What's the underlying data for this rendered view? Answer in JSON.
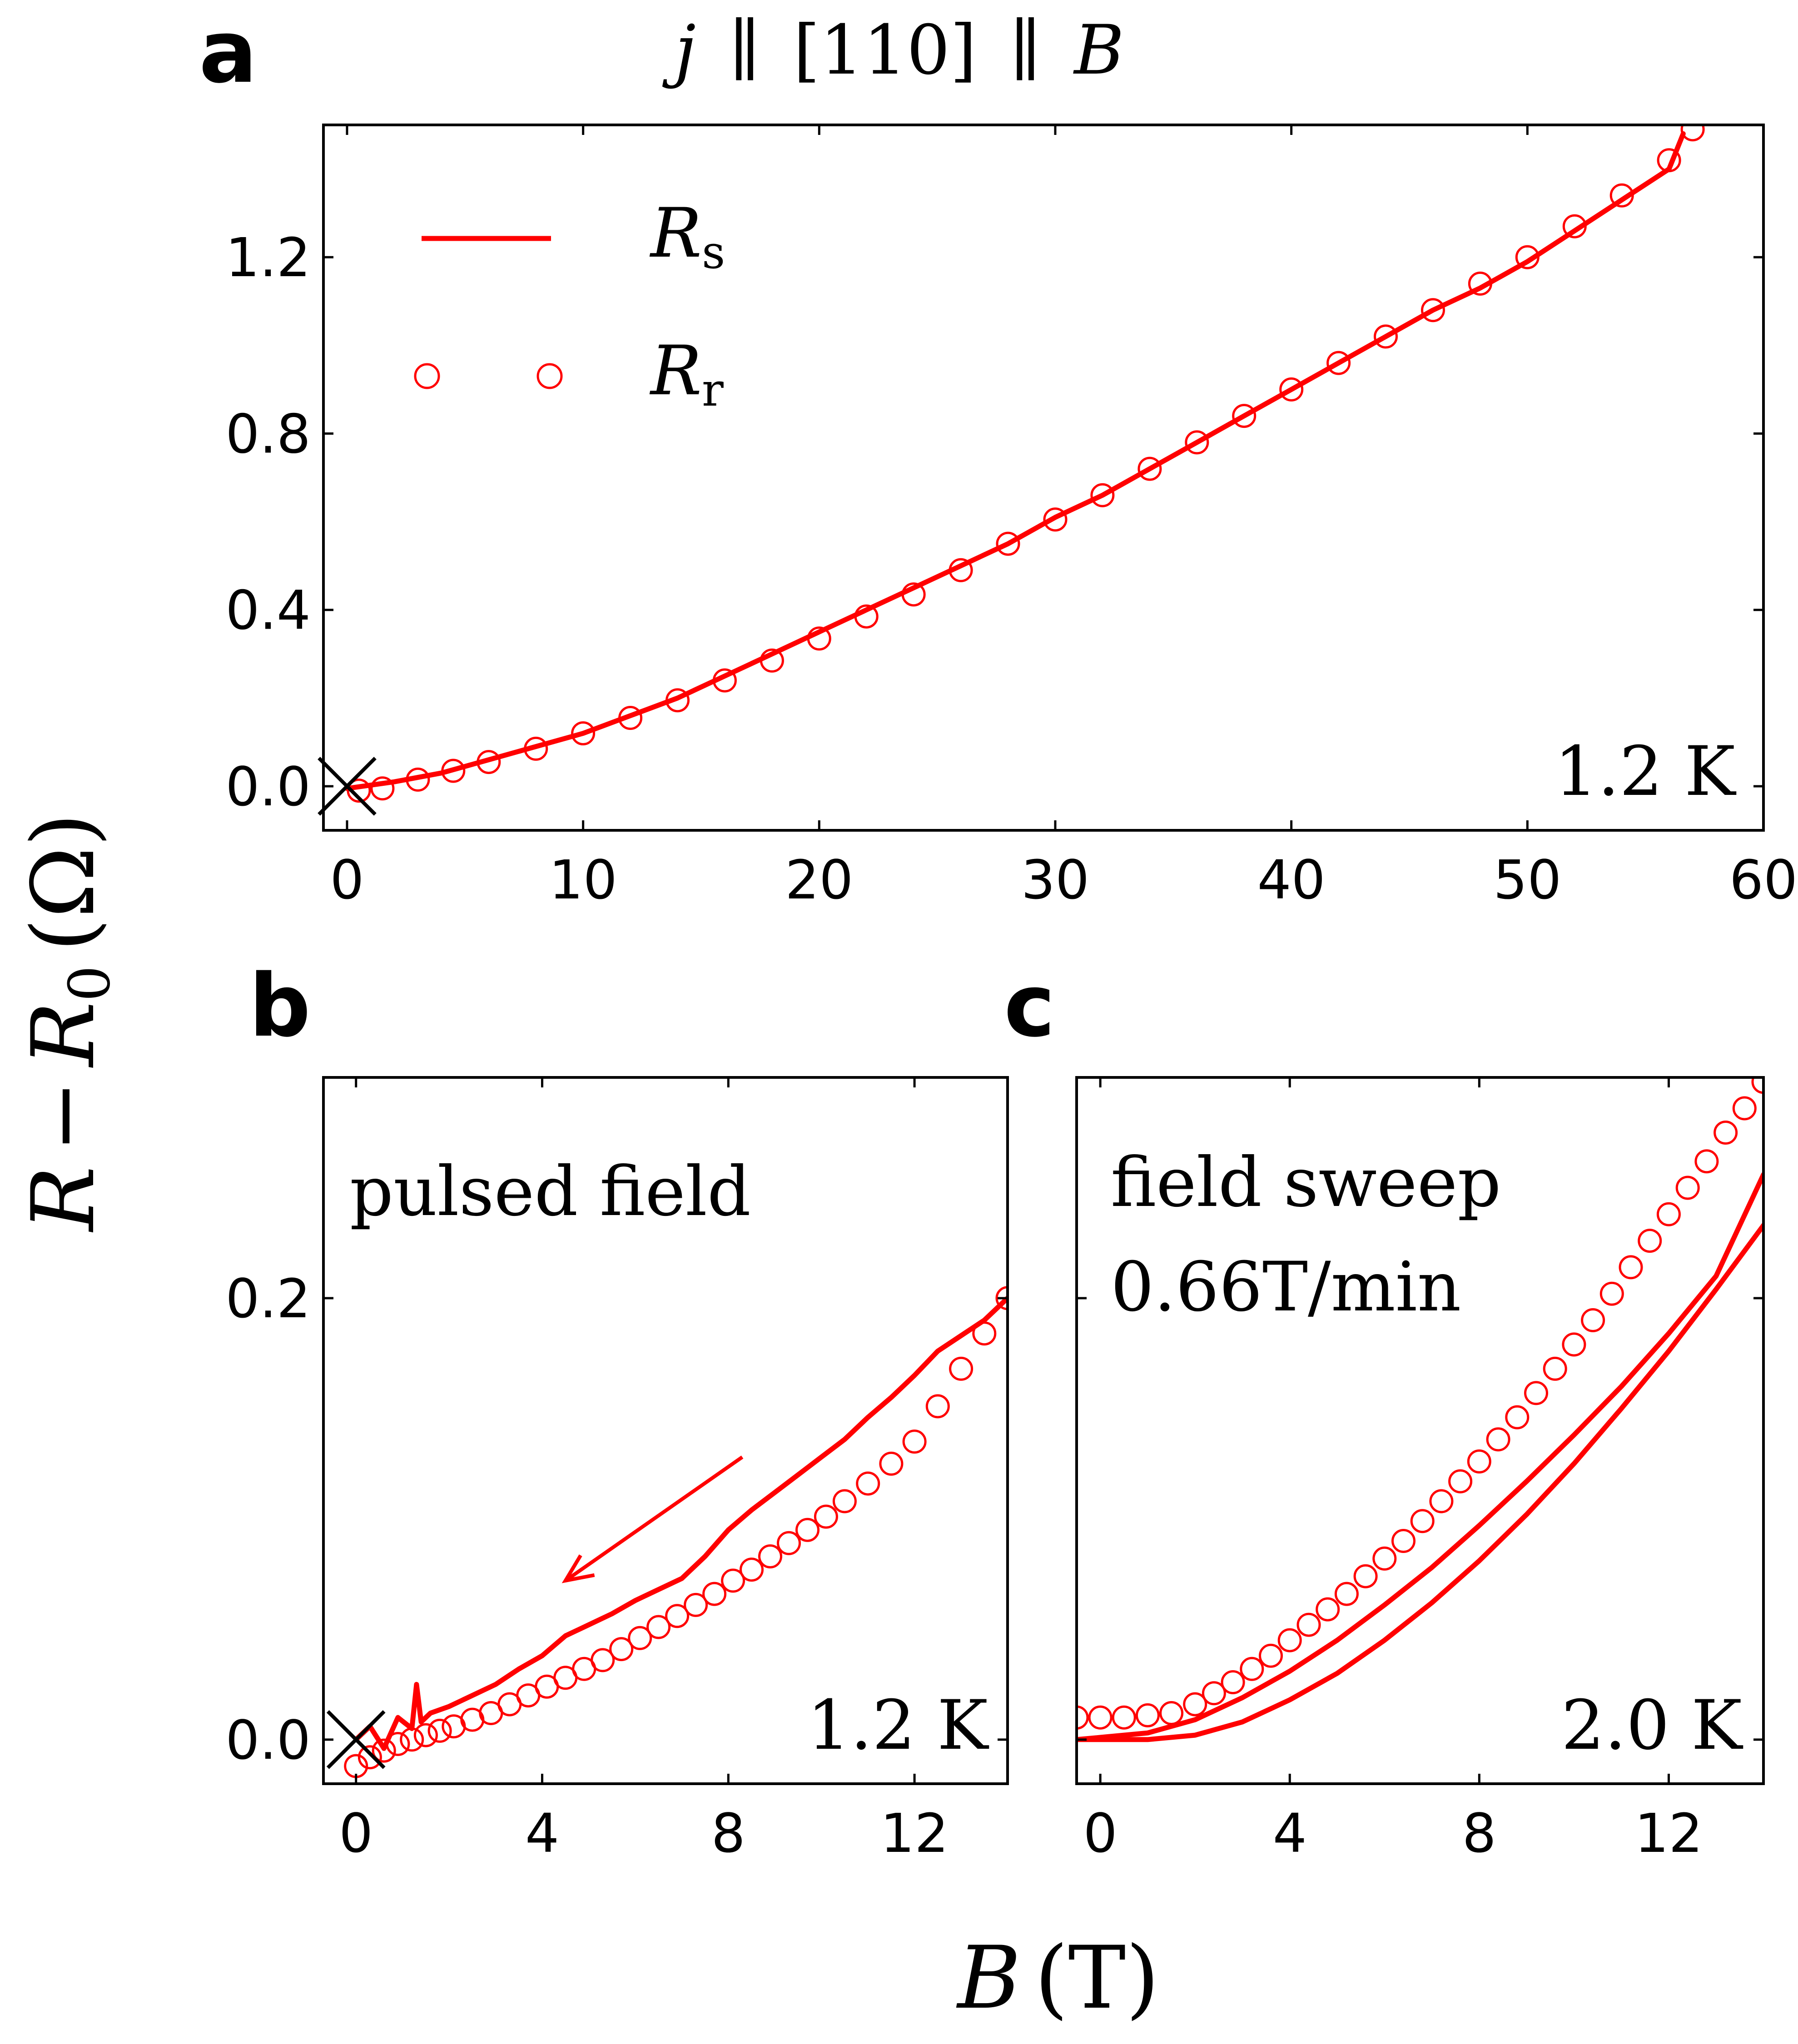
{
  "figure": {
    "title": "j ∥ [110] ∥ B",
    "title_parts": {
      "j": "j",
      "sep1": "∥",
      "direction": "[110]",
      "sep2": "∥",
      "field": "B"
    },
    "ylabel": "R − R0 (Ω)",
    "ylabel_parts": {
      "R": "R",
      "minus": "−",
      "R0": "R",
      "R0_sub": "0",
      "unit": "(Ω)"
    },
    "xlabel": "B (T)",
    "xlabel_parts": {
      "B": "B",
      "unit": "(T)"
    },
    "legend": {
      "line_symbol": "R",
      "line_sub": "s",
      "circle_symbol": "R",
      "circle_sub": "r"
    }
  },
  "colors": {
    "series": "#ff0000",
    "axes": "#000000",
    "background": "#ffffff"
  },
  "chart_data": [
    {
      "id": "a",
      "panel_letter": "a",
      "type": "line",
      "annotation": "1.2 K",
      "xlim": [
        -1,
        60
      ],
      "ylim": [
        -0.1,
        1.5
      ],
      "xticks": [
        0,
        10,
        20,
        30,
        40,
        50,
        60
      ],
      "xtick_labels": [
        "0",
        "10",
        "20",
        "30",
        "40",
        "50",
        "60"
      ],
      "yticks": [
        0.0,
        0.4,
        0.8,
        1.2
      ],
      "ytick_labels": [
        "0.0",
        "0.4",
        "0.8",
        "1.2"
      ],
      "origin_marker": [
        0,
        0
      ],
      "series": [
        {
          "name": "Rs",
          "style": "line",
          "x": [
            0,
            2,
            4,
            6,
            8,
            10,
            12,
            14,
            16,
            18,
            20,
            22,
            24,
            26,
            28,
            30,
            32,
            34,
            36,
            38,
            40,
            42,
            44,
            46,
            48,
            50,
            52,
            54,
            56,
            56.6
          ],
          "y": [
            -0.005,
            0.01,
            0.03,
            0.06,
            0.09,
            0.12,
            0.16,
            0.2,
            0.25,
            0.3,
            0.35,
            0.4,
            0.45,
            0.5,
            0.55,
            0.61,
            0.66,
            0.72,
            0.78,
            0.84,
            0.9,
            0.96,
            1.02,
            1.08,
            1.13,
            1.19,
            1.26,
            1.33,
            1.4,
            1.48
          ]
        },
        {
          "name": "Rr",
          "style": "circles",
          "x": [
            0.5,
            1.5,
            3,
            4.5,
            6,
            8,
            10,
            12,
            14,
            16,
            18,
            20,
            22,
            24,
            26,
            28,
            30,
            32,
            34,
            36,
            38,
            40,
            42,
            44,
            46,
            48,
            50,
            52,
            54,
            56,
            57
          ],
          "y": [
            -0.01,
            -0.005,
            0.015,
            0.035,
            0.055,
            0.085,
            0.12,
            0.155,
            0.195,
            0.24,
            0.285,
            0.335,
            0.385,
            0.435,
            0.49,
            0.55,
            0.605,
            0.66,
            0.72,
            0.78,
            0.84,
            0.9,
            0.96,
            1.02,
            1.08,
            1.14,
            1.2,
            1.27,
            1.34,
            1.42,
            1.49
          ]
        }
      ]
    },
    {
      "id": "b",
      "panel_letter": "b",
      "type": "line",
      "annotation_top": "pulsed field",
      "annotation": "1.2 K",
      "xlim": [
        -0.7,
        14
      ],
      "ylim": [
        -0.02,
        0.3
      ],
      "xticks": [
        0,
        4,
        8,
        12
      ],
      "xtick_labels": [
        "0",
        "4",
        "8",
        "12"
      ],
      "yticks": [
        0.0,
        0.2
      ],
      "ytick_labels": [
        "0.0",
        "0.2"
      ],
      "origin_marker": [
        0,
        0
      ],
      "arrow": {
        "from": [
          8.3,
          0.128
        ],
        "to": [
          4.5,
          0.072
        ]
      },
      "series": [
        {
          "name": "Rs",
          "style": "line",
          "x": [
            0,
            0.3,
            0.6,
            0.9,
            1.2,
            1.3,
            1.4,
            1.6,
            2,
            2.5,
            3,
            3.5,
            4,
            4.5,
            5,
            5.5,
            6,
            6.5,
            7,
            7.5,
            8,
            8.5,
            9,
            9.5,
            10,
            10.5,
            11,
            11.5,
            12,
            12.5,
            13,
            13.5,
            14
          ],
          "y": [
            0,
            0.006,
            -0.004,
            0.01,
            0.005,
            0.025,
            0.008,
            0.012,
            0.015,
            0.02,
            0.025,
            0.032,
            0.038,
            0.047,
            0.052,
            0.057,
            0.063,
            0.068,
            0.073,
            0.083,
            0.095,
            0.104,
            0.112,
            0.12,
            0.128,
            0.136,
            0.146,
            0.155,
            0.165,
            0.176,
            0.183,
            0.19,
            0.2
          ]
        },
        {
          "name": "Rr",
          "style": "circles",
          "x": [
            0,
            0.3,
            0.6,
            0.9,
            1.2,
            1.5,
            1.8,
            2.1,
            2.5,
            2.9,
            3.3,
            3.7,
            4.1,
            4.5,
            4.9,
            5.3,
            5.7,
            6.1,
            6.5,
            6.9,
            7.3,
            7.7,
            8.1,
            8.5,
            8.9,
            9.3,
            9.7,
            10.1,
            10.5,
            11,
            11.5,
            12,
            12.5,
            13,
            13.5,
            14
          ],
          "y": [
            -0.012,
            -0.008,
            -0.005,
            -0.002,
            0,
            0.002,
            0.004,
            0.006,
            0.009,
            0.012,
            0.016,
            0.02,
            0.024,
            0.028,
            0.032,
            0.036,
            0.041,
            0.046,
            0.051,
            0.056,
            0.061,
            0.066,
            0.072,
            0.077,
            0.083,
            0.089,
            0.095,
            0.101,
            0.108,
            0.116,
            0.125,
            0.135,
            0.151,
            0.168,
            0.184,
            0.2
          ]
        }
      ]
    },
    {
      "id": "c",
      "panel_letter": "c",
      "type": "line",
      "annotation_top": [
        "field sweep",
        "0.66T/min"
      ],
      "annotation": "2.0 K",
      "xlim": [
        -0.5,
        14
      ],
      "ylim": [
        -0.02,
        0.3
      ],
      "xticks": [
        0,
        4,
        8,
        12
      ],
      "xtick_labels": [
        "0",
        "4",
        "8",
        "12"
      ],
      "yticks": [
        0.0,
        0.2
      ],
      "series": [
        {
          "name": "Rs",
          "style": "line",
          "x": [
            -0.5,
            0,
            1,
            2,
            3,
            4,
            5,
            6,
            7,
            8,
            9,
            10,
            11,
            12,
            13,
            14
          ],
          "y": [
            0,
            0,
            0,
            0.002,
            0.008,
            0.018,
            0.03,
            0.045,
            0.062,
            0.081,
            0.102,
            0.125,
            0.15,
            0.176,
            0.204,
            0.233
          ]
        },
        {
          "name": "Rs",
          "style": "line",
          "x": [
            -0.5,
            0,
            1,
            2,
            3,
            4,
            5,
            6,
            7,
            8,
            9,
            10,
            11,
            12,
            13,
            14
          ],
          "y": [
            0,
            0.001,
            0.003,
            0.009,
            0.019,
            0.031,
            0.045,
            0.061,
            0.078,
            0.097,
            0.117,
            0.138,
            0.16,
            0.184,
            0.21,
            0.256
          ]
        },
        {
          "name": "Rr",
          "style": "circles",
          "x": [
            -0.5,
            0,
            0.5,
            1,
            1.5,
            2,
            2.4,
            2.8,
            3.2,
            3.6,
            4,
            4.4,
            4.8,
            5.2,
            5.6,
            6,
            6.4,
            6.8,
            7.2,
            7.6,
            8,
            8.4,
            8.8,
            9.2,
            9.6,
            10,
            10.4,
            10.8,
            11.2,
            11.6,
            12,
            12.4,
            12.8,
            13.2,
            13.6,
            14
          ],
          "y": [
            0.01,
            0.01,
            0.01,
            0.011,
            0.012,
            0.016,
            0.021,
            0.026,
            0.032,
            0.038,
            0.045,
            0.052,
            0.059,
            0.066,
            0.074,
            0.082,
            0.09,
            0.099,
            0.108,
            0.117,
            0.126,
            0.136,
            0.146,
            0.157,
            0.168,
            0.179,
            0.19,
            0.202,
            0.214,
            0.226,
            0.238,
            0.25,
            0.262,
            0.275,
            0.286,
            0.298
          ]
        }
      ]
    }
  ]
}
